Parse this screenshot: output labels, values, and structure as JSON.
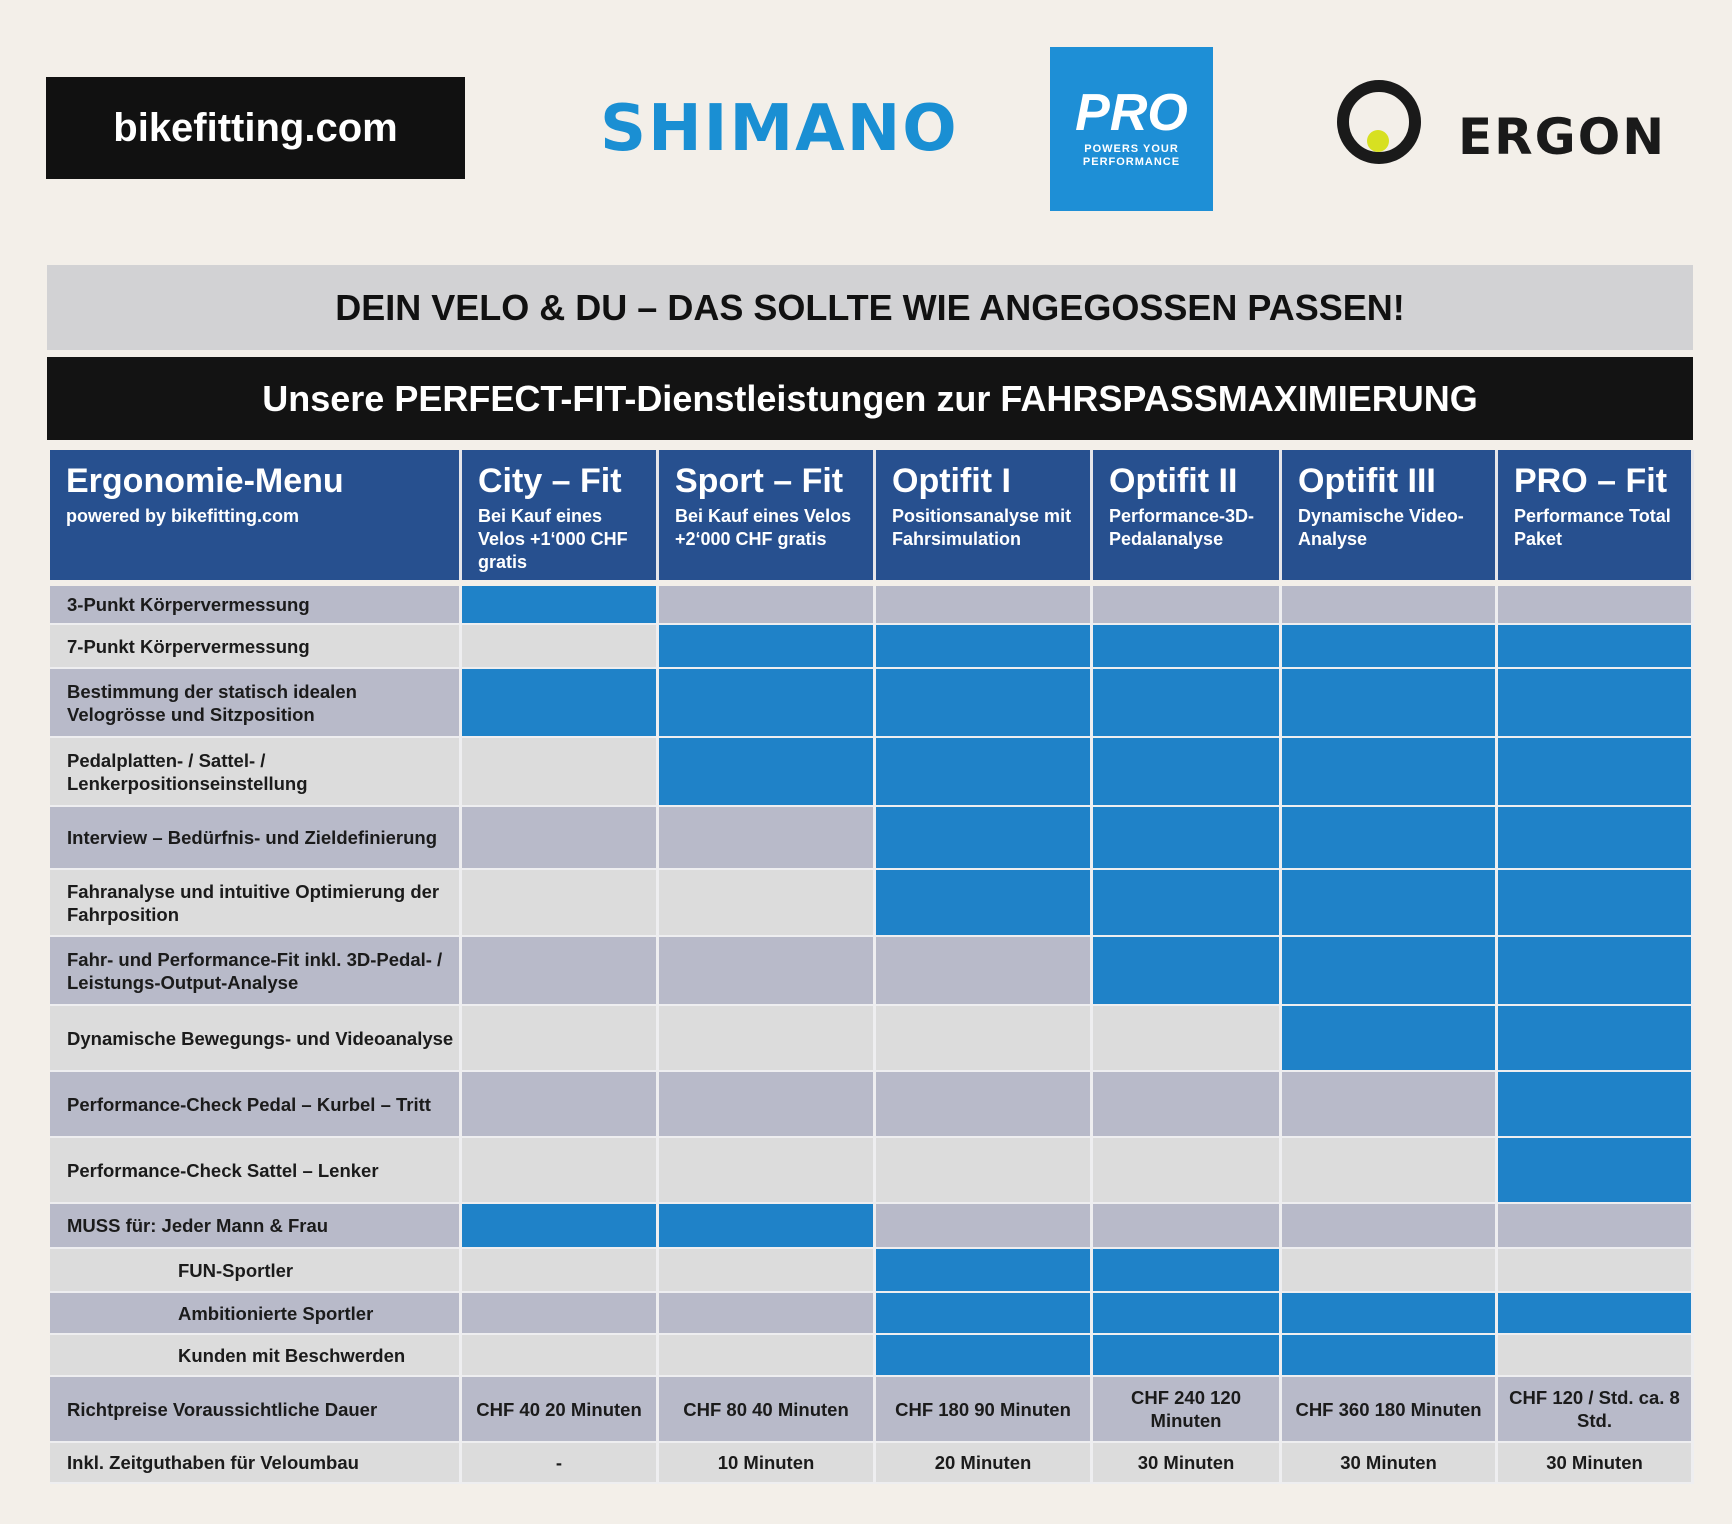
{
  "logos": {
    "bikefitting": "bikefitting.com",
    "shimano": "SHIMANO",
    "pro": "PRO",
    "pro_tagline": "POWERS YOUR PERFORMANCE",
    "ergon": "ERGON"
  },
  "title": "DEIN VELO & DU – DAS SOLLTE WIE ANGEGOSSEN PASSEN!",
  "subtitle": "Unsere PERFECT-FIT-Dienstleistungen zur FAHRSPASSMAXIMIERUNG",
  "colors": {
    "included": "#1f82c8",
    "header": "#27508f"
  },
  "header": {
    "title": "Ergonomie-Menu",
    "sub": "powered by bikefitting.com"
  },
  "columns": [
    {
      "title": "City – Fit",
      "sub": "Bei Kauf eines Velos +1‘000 CHF gratis"
    },
    {
      "title": "Sport – Fit",
      "sub": "Bei Kauf eines Velos +2‘000 CHF gratis"
    },
    {
      "title": "Optifit I",
      "sub": "Positionsanalyse mit Fahrsimulation"
    },
    {
      "title": "Optifit II",
      "sub": "Performance-3D-Pedalanalyse"
    },
    {
      "title": "Optifit III",
      "sub": "Dynamische Video-Analyse"
    },
    {
      "title": "PRO – Fit",
      "sub": "Performance Total Paket"
    }
  ],
  "rows": [
    {
      "label": "3-Punkt Körpervermessung",
      "included": [
        1,
        0,
        0,
        0,
        0,
        0
      ]
    },
    {
      "label": "7-Punkt Körpervermessung",
      "included": [
        0,
        1,
        1,
        1,
        1,
        1
      ]
    },
    {
      "label": "Bestimmung der statisch idealen Velogrösse und Sitzposition",
      "included": [
        1,
        1,
        1,
        1,
        1,
        1
      ]
    },
    {
      "label": "Pedalplatten- / Sattel- / Lenkerpositionseinstellung",
      "included": [
        0,
        1,
        1,
        1,
        1,
        1
      ]
    },
    {
      "label": "Interview – Bedürfnis- und Zieldefinierung",
      "included": [
        0,
        0,
        1,
        1,
        1,
        1
      ]
    },
    {
      "label": "Fahranalyse und intuitive Optimierung der Fahrposition",
      "included": [
        0,
        0,
        1,
        1,
        1,
        1
      ]
    },
    {
      "label": "Fahr- und Performance-Fit inkl. 3D-Pedal- / Leistungs-Output-Analyse",
      "included": [
        0,
        0,
        0,
        1,
        1,
        1
      ]
    },
    {
      "label": "Dynamische Bewegungs- und Videoanalyse",
      "included": [
        0,
        0,
        0,
        0,
        1,
        1
      ]
    },
    {
      "label": "Performance-Check Pedal – Kurbel – Tritt",
      "included": [
        0,
        0,
        0,
        0,
        0,
        1
      ]
    },
    {
      "label": "Performance-Check Sattel – Lenker",
      "included": [
        0,
        0,
        0,
        0,
        0,
        1
      ]
    },
    {
      "label": "MUSS für:  Jeder Mann & Frau",
      "included": [
        1,
        1,
        0,
        0,
        0,
        0
      ]
    },
    {
      "label": "FUN-Sportler",
      "indent": true,
      "included": [
        0,
        0,
        1,
        1,
        0,
        0
      ]
    },
    {
      "label": "Ambitionierte Sportler",
      "indent": true,
      "included": [
        0,
        0,
        1,
        1,
        1,
        1
      ]
    },
    {
      "label": "Kunden mit Beschwerden",
      "indent": true,
      "included": [
        0,
        0,
        1,
        1,
        1,
        0
      ]
    }
  ],
  "price_row": {
    "label": "Richtpreise Voraussichtliche Dauer",
    "values": [
      "CHF 40 20 Minuten",
      "CHF 80 40 Minuten",
      "CHF 180 90 Minuten",
      "CHF 240 120 Minuten",
      "CHF 360 180 Minuten",
      "CHF 120 / Std. ca. 8 Std."
    ]
  },
  "credit_row": {
    "label": "Inkl. Zeitguthaben für Veloumbau",
    "values": [
      "-",
      "10 Minuten",
      "20 Minuten",
      "30 Minuten",
      "30 Minuten",
      "30 Minuten"
    ]
  }
}
